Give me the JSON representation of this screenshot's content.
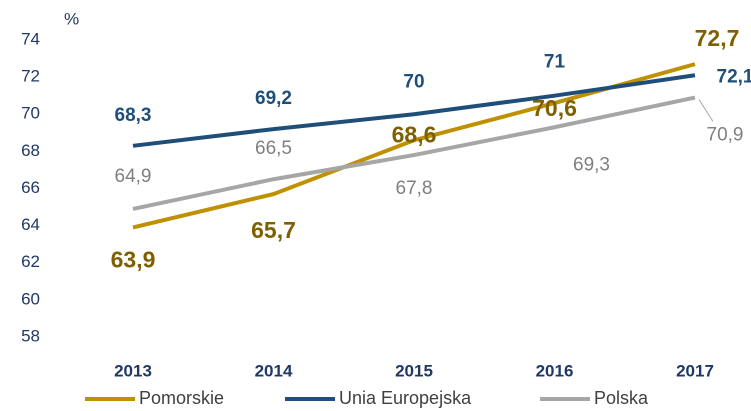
{
  "chart_data": {
    "type": "line",
    "y_label": "%",
    "categories": [
      "2013",
      "2014",
      "2015",
      "2016",
      "2017"
    ],
    "ylim": [
      58,
      74
    ],
    "yticks": [
      58,
      60,
      62,
      64,
      66,
      68,
      70,
      72,
      74
    ],
    "grid": false,
    "legend": "bottom",
    "series": [
      {
        "name": "Pomorskie",
        "color": "#bf9000",
        "label_color": "#7f6000",
        "values": [
          63.9,
          65.7,
          68.6,
          70.6,
          72.7
        ],
        "value_labels": [
          "63,9",
          "65,7",
          "68,6",
          "70,6",
          "72,7"
        ]
      },
      {
        "name": "Unia Europejska",
        "color": "#1f4e79",
        "label_color": "#1f4e79",
        "values": [
          68.3,
          69.2,
          70,
          71,
          72.1
        ],
        "value_labels": [
          "68,3",
          "69,2",
          "70",
          "71",
          "72,1"
        ]
      },
      {
        "name": "Polska",
        "color": "#a6a6a6",
        "label_color": "#7f7f7f",
        "values": [
          64.9,
          66.5,
          67.8,
          69.3,
          70.9
        ],
        "value_labels": [
          "64,9",
          "66,5",
          "67,8",
          "69,3",
          "70,9"
        ]
      }
    ]
  }
}
